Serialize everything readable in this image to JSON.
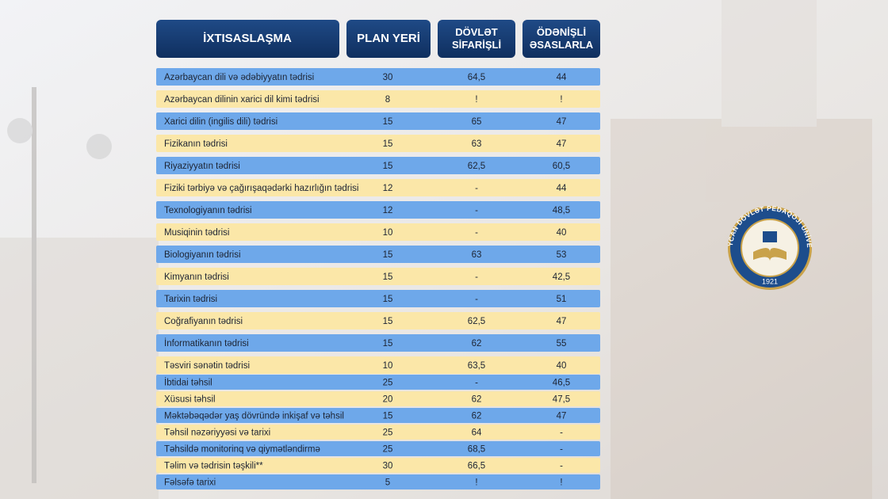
{
  "header": {
    "columns": [
      "İXTISASLAŞMA",
      "PLAN YERİ",
      "DÖVLƏT SİFARİŞLİ",
      "ÖDƏNİŞLİ ƏSASLARLA"
    ]
  },
  "table": {
    "rows": [
      [
        "Azərbaycan dili və ədəbiyyatın tədrisi",
        "30",
        "64,5",
        "44"
      ],
      [
        "Azərbaycan dilinin xarici dil kimi tədrisi",
        "8",
        "!",
        "!"
      ],
      [
        "Xarici dilin (ingilis dili) tədrisi",
        "15",
        "65",
        "47"
      ],
      [
        "Fizikanın tədrisi",
        "15",
        "63",
        "47"
      ],
      [
        "Riyaziyyatın tədrisi",
        "15",
        "62,5",
        "60,5"
      ],
      [
        "Fiziki tərbiyə və çağırışaqədərki hazırlığın tədrisi",
        "12",
        "-",
        "44"
      ],
      [
        "Texnologiyanın tədrisi",
        "12",
        "-",
        "48,5"
      ],
      [
        "Musiqinin tədrisi",
        "10",
        "-",
        "40"
      ],
      [
        "Biologiyanın tədrisi",
        "15",
        "63",
        "53"
      ],
      [
        "Kimyanın tədrisi",
        "15",
        "-",
        "42,5"
      ],
      [
        "Tarixin tədrisi",
        "15",
        "-",
        "51"
      ],
      [
        "Coğrafiyanın tədrisi",
        "15",
        "62,5",
        "47"
      ],
      [
        "İnformatikanın tədrisi",
        "15",
        "62",
        "55"
      ],
      [
        "Təsviri sənətin tədrisi",
        "10",
        "63,5",
        "40"
      ],
      [
        "İbtidai təhsil",
        "25",
        "-",
        "46,5"
      ],
      [
        "Xüsusi təhsil",
        "20",
        "62",
        "47,5"
      ],
      [
        "Məktəbəqədər yaş dövründə inkişaf və təhsil",
        "15",
        "62",
        "47"
      ],
      [
        "Təhsil nəzəriyyəsi və tarixi",
        "25",
        "64",
        "-"
      ],
      [
        "Təhsildə monitorinq və qiymətləndirmə",
        "25",
        "68,5",
        "-"
      ],
      [
        "Təlim və tədrisin təşkili**",
        "30",
        "66,5",
        "-"
      ],
      [
        "Fəlsəfə tarixi",
        "5",
        "!",
        "!"
      ]
    ]
  },
  "logo": {
    "text": "AZƏRBAYCAN DÖVLƏT PEDAQOJİ UNİVERSİTETİ",
    "year": "1921"
  }
}
